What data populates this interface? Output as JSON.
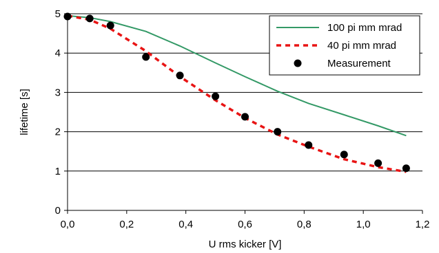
{
  "chart_data": {
    "type": "line",
    "xlabel": "U rms kicker [V]",
    "ylabel": "lifetime [s]",
    "xlim": [
      0,
      1.2
    ],
    "ylim": [
      0,
      5
    ],
    "x_ticks": [
      "0,0",
      "0,2",
      "0,4",
      "0,6",
      "0,8",
      "1,0",
      "1,2"
    ],
    "y_ticks": [
      "0",
      "1",
      "2",
      "3",
      "4",
      "5"
    ],
    "grid": "horizontal",
    "legend_position": "top-right",
    "series": [
      {
        "name": "100 pi mm mrad",
        "style": "solid-line",
        "color": "#339966",
        "x": [
          0.0,
          0.075,
          0.145,
          0.265,
          0.38,
          0.5,
          0.6,
          0.71,
          0.815,
          0.935,
          1.05,
          1.145
        ],
        "y": [
          4.95,
          4.9,
          4.8,
          4.55,
          4.18,
          3.75,
          3.4,
          3.03,
          2.72,
          2.43,
          2.15,
          1.9
        ]
      },
      {
        "name": "40 pi mm mrad",
        "style": "dashed-line",
        "color": "#e81414",
        "x": [
          0.0,
          0.075,
          0.145,
          0.265,
          0.38,
          0.5,
          0.6,
          0.71,
          0.815,
          0.935,
          1.05,
          1.145
        ],
        "y": [
          4.95,
          4.85,
          4.62,
          4.05,
          3.4,
          2.8,
          2.35,
          1.93,
          1.62,
          1.3,
          1.1,
          0.98
        ]
      },
      {
        "name": "Measurement",
        "style": "markers",
        "color": "#000000",
        "x": [
          0.0,
          0.075,
          0.145,
          0.265,
          0.38,
          0.5,
          0.6,
          0.71,
          0.815,
          0.935,
          1.05,
          1.145
        ],
        "y": [
          4.93,
          4.88,
          4.7,
          3.9,
          3.43,
          2.9,
          2.38,
          2.0,
          1.66,
          1.42,
          1.2,
          1.07
        ]
      }
    ]
  }
}
